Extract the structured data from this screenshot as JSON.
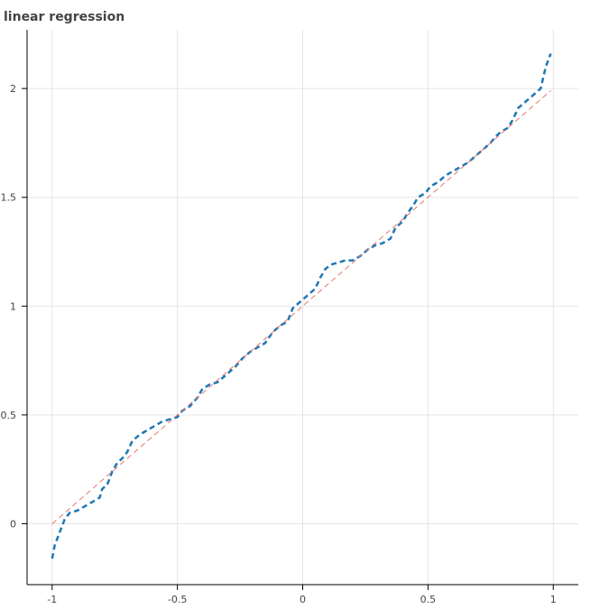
{
  "chart_data": {
    "type": "line",
    "title": "linear regression",
    "xlabel": "",
    "ylabel": "",
    "xlim": [
      -1.1,
      1.1
    ],
    "ylim": [
      -0.28,
      2.27
    ],
    "grid": true,
    "x_ticks": [
      -1,
      -0.5,
      0,
      0.5,
      1
    ],
    "x_tick_labels": [
      "-1",
      "-0.5",
      "0",
      "0.5",
      "1"
    ],
    "y_ticks": [
      0,
      0.5,
      1,
      1.5,
      2
    ],
    "y_tick_labels": [
      "0",
      "0.5",
      "1",
      "1.5",
      "2"
    ],
    "series": [
      {
        "color": "#1f77b4",
        "dash": "dashed",
        "points": [
          [
            -1.0,
            -0.16
          ],
          [
            -0.99,
            -0.1
          ],
          [
            -0.97,
            -0.04
          ],
          [
            -0.95,
            0.02
          ],
          [
            -0.93,
            0.05
          ],
          [
            -0.9,
            0.06
          ],
          [
            -0.87,
            0.08
          ],
          [
            -0.84,
            0.1
          ],
          [
            -0.81,
            0.12
          ],
          [
            -0.8,
            0.16
          ],
          [
            -0.78,
            0.18
          ],
          [
            -0.76,
            0.24
          ],
          [
            -0.74,
            0.28
          ],
          [
            -0.72,
            0.3
          ],
          [
            -0.7,
            0.33
          ],
          [
            -0.68,
            0.38
          ],
          [
            -0.65,
            0.41
          ],
          [
            -0.62,
            0.43
          ],
          [
            -0.59,
            0.45
          ],
          [
            -0.56,
            0.47
          ],
          [
            -0.53,
            0.48
          ],
          [
            -0.5,
            0.49
          ],
          [
            -0.48,
            0.52
          ],
          [
            -0.45,
            0.54
          ],
          [
            -0.42,
            0.58
          ],
          [
            -0.4,
            0.62
          ],
          [
            -0.37,
            0.64
          ],
          [
            -0.34,
            0.65
          ],
          [
            -0.3,
            0.69
          ],
          [
            -0.27,
            0.72
          ],
          [
            -0.24,
            0.76
          ],
          [
            -0.21,
            0.79
          ],
          [
            -0.18,
            0.81
          ],
          [
            -0.15,
            0.83
          ],
          [
            -0.12,
            0.88
          ],
          [
            -0.09,
            0.91
          ],
          [
            -0.06,
            0.93
          ],
          [
            -0.04,
            0.99
          ],
          [
            -0.01,
            1.02
          ],
          [
            0.02,
            1.05
          ],
          [
            0.05,
            1.08
          ],
          [
            0.07,
            1.13
          ],
          [
            0.09,
            1.17
          ],
          [
            0.11,
            1.19
          ],
          [
            0.14,
            1.2
          ],
          [
            0.17,
            1.21
          ],
          [
            0.2,
            1.21
          ],
          [
            0.23,
            1.23
          ],
          [
            0.26,
            1.26
          ],
          [
            0.29,
            1.28
          ],
          [
            0.32,
            1.29
          ],
          [
            0.35,
            1.31
          ],
          [
            0.37,
            1.36
          ],
          [
            0.4,
            1.39
          ],
          [
            0.42,
            1.43
          ],
          [
            0.44,
            1.46
          ],
          [
            0.46,
            1.5
          ],
          [
            0.49,
            1.52
          ],
          [
            0.51,
            1.55
          ],
          [
            0.54,
            1.57
          ],
          [
            0.57,
            1.6
          ],
          [
            0.6,
            1.62
          ],
          [
            0.63,
            1.64
          ],
          [
            0.66,
            1.66
          ],
          [
            0.69,
            1.69
          ],
          [
            0.72,
            1.72
          ],
          [
            0.75,
            1.75
          ],
          [
            0.77,
            1.78
          ],
          [
            0.79,
            1.8
          ],
          [
            0.82,
            1.82
          ],
          [
            0.84,
            1.86
          ],
          [
            0.86,
            1.91
          ],
          [
            0.89,
            1.94
          ],
          [
            0.92,
            1.97
          ],
          [
            0.95,
            2.0
          ],
          [
            0.96,
            2.05
          ],
          [
            0.97,
            2.1
          ],
          [
            0.99,
            2.16
          ]
        ]
      },
      {
        "color": "#e8756a",
        "dash": "dashed",
        "points": [
          [
            -1.0,
            0.0
          ],
          [
            0.99,
            1.99
          ]
        ]
      }
    ]
  }
}
